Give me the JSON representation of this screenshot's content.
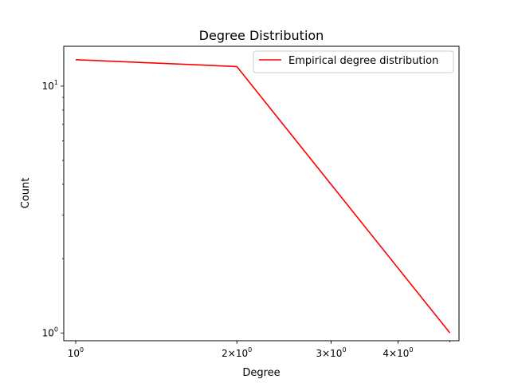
{
  "chart_data": {
    "type": "line",
    "title": "Degree Distribution",
    "xlabel": "Degree",
    "ylabel": "Count",
    "x_scale": "log",
    "y_scale": "log",
    "xlim": [
      0.95,
      5.2
    ],
    "ylim": [
      0.93,
      14.5
    ],
    "x_ticks": [
      {
        "value": 1,
        "base": "10",
        "exp": "0"
      },
      {
        "value": 2,
        "base": "2×10",
        "exp": "0"
      },
      {
        "value": 3,
        "base": "3×10",
        "exp": "0"
      },
      {
        "value": 4,
        "base": "4×10",
        "exp": "0"
      }
    ],
    "y_ticks": [
      {
        "value": 1,
        "base": "10",
        "exp": "0"
      },
      {
        "value": 10,
        "base": "10",
        "exp": "1"
      }
    ],
    "grid": false,
    "legend_position": "top-right",
    "series": [
      {
        "name": "Empirical degree distribution",
        "color": "#ff0000",
        "x": [
          1,
          2,
          5
        ],
        "y": [
          12.8,
          12.0,
          1.0
        ]
      }
    ]
  }
}
